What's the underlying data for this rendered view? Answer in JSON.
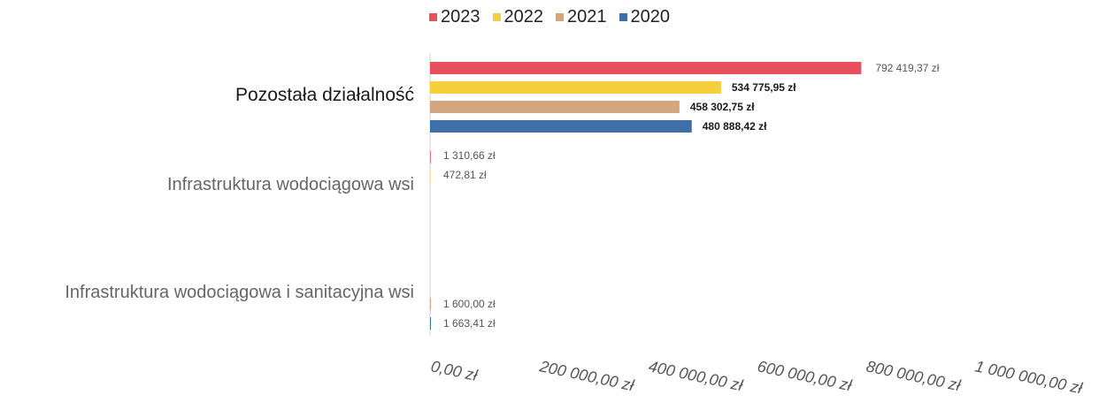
{
  "chart_data": {
    "type": "bar",
    "orientation": "horizontal",
    "categories": [
      "Pozostała działalność",
      "Infrastruktura wodociągowa wsi",
      "Infrastruktura wodociągowa i sanitacyjna wsi"
    ],
    "series": [
      {
        "name": "2023",
        "color": "#e8505b",
        "values": [
          792419.37,
          1310.66,
          null
        ],
        "labels": [
          "792 419,37 zł",
          "1 310,66 zł",
          ""
        ]
      },
      {
        "name": "2022",
        "color": "#f5cf3c",
        "values": [
          534775.95,
          472.81,
          null
        ],
        "labels": [
          "534 775,95 zł",
          "472,81 zł",
          ""
        ]
      },
      {
        "name": "2021",
        "color": "#d2a77f",
        "values": [
          458302.75,
          null,
          1600.0
        ],
        "labels": [
          "458 302,75 zł",
          "",
          "1 600,00 zł"
        ]
      },
      {
        "name": "2020",
        "color": "#3f6fa8",
        "values": [
          480888.42,
          null,
          1663.41
        ],
        "labels": [
          "480 888,42 zł",
          "",
          "1 663,41 zł"
        ]
      }
    ],
    "xlim": [
      0,
      1000000
    ],
    "xticks": [
      0,
      200000,
      400000,
      600000,
      800000,
      1000000
    ],
    "xtick_labels": [
      "0,00 zł",
      "200 000,00 zł",
      "400 000,00 zł",
      "600 000,00 zł",
      "800 000,00 zł",
      "1 000 000,00 zł"
    ],
    "legend_position": "top",
    "grid": false
  }
}
